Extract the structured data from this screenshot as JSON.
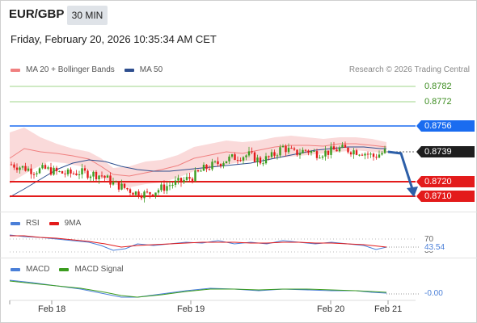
{
  "header": {
    "symbol": "EUR/GBP",
    "timeframe": "30 MIN",
    "datetime": "Friday, February 20, 2026 10:35:34 AM CET"
  },
  "legend": {
    "items": [
      {
        "label": "MA 20 + Bollinger Bands",
        "color": "#f08080"
      },
      {
        "label": "MA 50",
        "color": "#2f4f8f"
      }
    ],
    "credit": "Research © 2026 Trading Central"
  },
  "levels": {
    "green_1": "0.8782",
    "green_2": "0.8772",
    "blue": "0.8756",
    "current": "0.8739",
    "red_1": "0.8720",
    "red_2": "0.8710"
  },
  "rsi": {
    "legend": [
      {
        "label": "RSI",
        "color": "#4a7fd8"
      },
      {
        "label": "9MA",
        "color": "#e31b1b"
      }
    ],
    "level_70": "70",
    "value": "43.54",
    "level_30": "30"
  },
  "macd": {
    "legend": [
      {
        "label": "MACD",
        "color": "#4a7fd8"
      },
      {
        "label": "MACD Signal",
        "color": "#3b9c1f"
      }
    ],
    "value": "-0.00"
  },
  "xaxis": {
    "labels": [
      "Feb 18",
      "Feb 19",
      "Feb 20",
      "Feb 21"
    ]
  },
  "colors": {
    "up": "#3b9c1f",
    "down": "#e31b1b",
    "blue_level": "#1a6cf0",
    "green_level": "#7cc35a",
    "bollinger_fill": "#f9d9d9",
    "ma50": "#2f4f8f",
    "forecast_arrow": "#2d5fa8"
  },
  "chart_data": {
    "type": "candlestick",
    "close_series_approx": [
      0.8731,
      0.8729,
      0.8727,
      0.8728,
      0.8726,
      0.8725,
      0.8726,
      0.8725,
      0.8724,
      0.8719,
      0.8716,
      0.8713,
      0.8712,
      0.8715,
      0.8718,
      0.872,
      0.8723,
      0.8728,
      0.8731,
      0.8734,
      0.8736,
      0.8737,
      0.8733,
      0.8736,
      0.8742,
      0.8738,
      0.874,
      0.8738,
      0.8739,
      0.8741,
      0.874,
      0.8739,
      0.8736,
      0.8739
    ],
    "resistance": [
      0.8756,
      0.8772,
      0.8782
    ],
    "support": [
      0.872,
      0.871
    ],
    "last": 0.8739
  }
}
